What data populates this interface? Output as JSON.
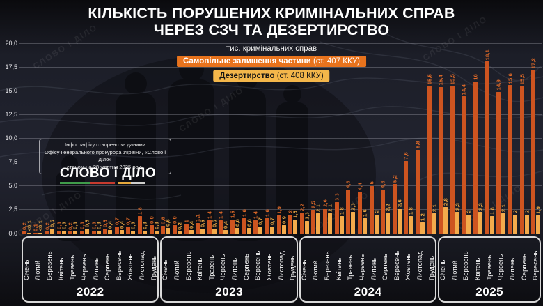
{
  "header": {
    "line1": "КІЛЬКІСТЬ ПОРУШЕНИХ КРИМІНАЛЬНИХ СПРАВ",
    "line2": "ЧЕРЕЗ СЗЧ ТА ДЕЗЕРТИРСТВО",
    "unit": "тис. кримінальних справ"
  },
  "legend": [
    {
      "label_bold": "Самовільне залишення частини",
      "label_rest": " (ст. 407 ККУ)",
      "bg": "#e8731d",
      "text": "#ffffff"
    },
    {
      "label_bold": "Дезертирство",
      "label_rest": " (ст. 408 ККУ)",
      "bg": "#f3b64a",
      "text": "#141414"
    }
  ],
  "source": {
    "line1": "Інфографіку створено за даними",
    "line2": "Офісу Генерального прокурора України, «Слово і діло»",
    "line3": "станом на 28 жовтня 2025 року",
    "logo": "СЛОВО і ДІЛО",
    "logo_bar_colors": [
      "#3f9b4a",
      "#c63a2e",
      "transparent",
      "#e7a93c",
      "#cfcfcd"
    ],
    "logo_bar_widths": [
      35,
      30,
      4,
      15,
      16
    ]
  },
  "watermark_text": "СЛОВО І ДІЛО",
  "chart_data": {
    "type": "bar",
    "title": "Кількість порушених кримінальних справ через СЗЧ та дезертирство",
    "ylabel": "тис. кримінальних справ",
    "ylim": [
      0,
      20
    ],
    "grid": true,
    "ytick_labels": [
      "0,0",
      "2,5",
      "5,0",
      "7,5",
      "10,0",
      "12,5",
      "15,0",
      "17,5",
      "20,0"
    ],
    "series_meta": [
      {
        "key": "szch",
        "name": "Самовільне залишення частини (ст. 407 ККУ)",
        "bar_color": "#cd5420",
        "label_color": "#e06a28"
      },
      {
        "key": "desertion",
        "name": "Дезертирство (ст. 408 ККУ)",
        "bar_color": "#f3ab4c",
        "label_color": "#eeaa45"
      }
    ],
    "years": [
      {
        "label": "2022",
        "months": [
          "Січень",
          "Лютий",
          "Березень",
          "Квітень",
          "Травень",
          "Червень",
          "Липень",
          "Серпень",
          "Вересень",
          "Жовтень",
          "Листопад",
          "Грудень"
        ],
        "szch": {
          "labels": [
            "0,2",
            "0,1",
            "0,2",
            "0,3",
            "0,2",
            "0,3",
            "0,3",
            "0,5",
            "0,7",
            "0,7",
            "1,8",
            "0,9"
          ],
          "values": [
            0.2,
            0.1,
            0.2,
            0.3,
            0.2,
            0.3,
            0.3,
            0.5,
            0.7,
            0.7,
            1.8,
            0.9
          ]
        },
        "desertion": {
          "labels": [
            "<0,1",
            "<0,1",
            "0,5",
            "0,3",
            "0,3",
            "0,5",
            "0,3",
            "0,4",
            "0,4",
            "0,3",
            "0,3",
            "0,3"
          ],
          "values": [
            0.07,
            0.07,
            0.5,
            0.3,
            0.3,
            0.5,
            0.3,
            0.4,
            0.4,
            0.3,
            0.3,
            0.3
          ]
        }
      },
      {
        "label": "2023",
        "months": [
          "Січень",
          "Лютий",
          "Березень",
          "Квітень",
          "Травень",
          "Червень",
          "Липень",
          "Серпень",
          "Вересень",
          "Жовтень",
          "Листопад",
          "Грудень"
        ],
        "szch": {
          "labels": [
            "0,8",
            "0,9",
            "1",
            "1,1",
            "1,4",
            "1,4",
            "1,5",
            "1,6",
            "1,4",
            "1,6",
            "1,9",
            "2"
          ],
          "values": [
            0.8,
            0.9,
            1,
            1.1,
            1.4,
            1.4,
            1.5,
            1.6,
            1.4,
            1.6,
            1.9,
            2
          ]
        },
        "desertion": {
          "labels": [
            "0,6",
            "0,2",
            "0,4",
            "0,5",
            "0,5",
            "0,4",
            "0,6",
            "0,6",
            "0,7",
            "0,7",
            "0,9",
            "1,5"
          ],
          "values": [
            0.6,
            0.2,
            0.4,
            0.5,
            0.5,
            0.4,
            0.6,
            0.6,
            0.7,
            0.7,
            0.9,
            1.5
          ]
        }
      },
      {
        "label": "2024",
        "months": [
          "Січень",
          "Лютий",
          "Березень",
          "Квітень",
          "Травень",
          "Червень",
          "Липень",
          "Серпень",
          "Вересень",
          "Жовтень",
          "Листопад",
          "Грудень"
        ],
        "szch": {
          "labels": [
            "2,2",
            "2,5",
            "2,6",
            "3,3",
            "4,6",
            "4,4",
            "5",
            "4,6",
            "5,2",
            "7,6",
            "8,8",
            "15,5"
          ],
          "values": [
            2.2,
            2.5,
            2.6,
            3.3,
            4.6,
            4.4,
            5,
            4.6,
            5.2,
            7.6,
            8.8,
            15.5
          ]
        },
        "desertion": {
          "labels": [
            "1,3",
            "2,1",
            "2,1",
            "1,8",
            "2,3",
            "1,6",
            "2",
            "2,2",
            "2,6",
            "1,8",
            "1,2",
            "2,1"
          ],
          "values": [
            1.3,
            2.1,
            2.1,
            1.8,
            2.3,
            1.6,
            2,
            2.2,
            2.6,
            1.8,
            1.2,
            2.1
          ]
        }
      },
      {
        "label": "2025",
        "months": [
          "Січень",
          "Лютий",
          "Березень",
          "Квітень",
          "Травень",
          "Червень",
          "Липень",
          "Серпень",
          "Вересень"
        ],
        "szch": {
          "labels": [
            "15,4",
            "15,5",
            "14,4",
            "16",
            "18,1",
            "14,9",
            "15,6",
            "15,5",
            "17,2"
          ],
          "values": [
            15.4,
            15.5,
            14.4,
            16,
            18.1,
            14.9,
            15.6,
            15.5,
            17.2
          ]
        },
        "desertion": {
          "labels": [
            "2,8",
            "2,3",
            "2",
            "2,3",
            "1,8",
            "2,1",
            "2",
            "2",
            "1,9"
          ],
          "values": [
            2.8,
            2.3,
            2,
            2.3,
            1.8,
            2.1,
            2,
            2,
            1.9
          ]
        }
      }
    ]
  }
}
